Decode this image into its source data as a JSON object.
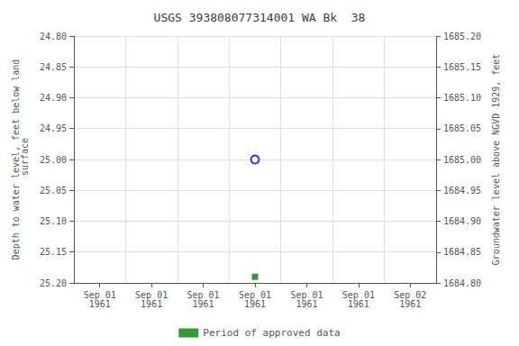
{
  "chart_data": {
    "type": "scatter",
    "title": "USGS 393808077314001 WA Bk  38",
    "y_label": "Depth to water level, feet below land\n surface",
    "y2_label": "Groundwater level above NGVD 1929, feet",
    "categories": [
      "Sep 01\n1961",
      "Sep 01\n1961",
      "Sep 01\n1961",
      "Sep 01\n1961",
      "Sep 01\n1961",
      "Sep 01\n1961",
      "Sep 02\n1961"
    ],
    "series": [
      {
        "color": "blue",
        "marker": "open_circle",
        "values": [
          null,
          null,
          null,
          25.0,
          null,
          null,
          null
        ]
      },
      {
        "name": "Period of approved data",
        "color": "green",
        "marker": "square",
        "values": [
          null,
          null,
          null,
          25.19,
          null,
          null,
          null
        ]
      }
    ],
    "ylim": [
      25.2,
      24.8
    ],
    "yticks": [
      {
        "value": 24.8,
        "label": "24.80"
      },
      24.85,
      {
        "value": 24.9,
        "label": "24.90"
      },
      24.95,
      {
        "value": 25.0,
        "label": "25.00"
      },
      25.05,
      {
        "value": 25.1,
        "label": "25.10"
      },
      25.15,
      {
        "value": 25.2,
        "label": "25.20"
      }
    ],
    "y2lim": [
      1684.8,
      1685.2
    ],
    "y2ticks": [
      {
        "value": 1685.2,
        "label": "1685.20"
      },
      1685.15,
      {
        "value": 1685.1,
        "label": "1685.10"
      },
      1685.05,
      {
        "value": 1685.0,
        "label": "1685.00"
      },
      1684.95,
      {
        "value": 1684.9,
        "label": "1684.90"
      },
      1684.85,
      {
        "value": 1684.8,
        "label": "1684.80"
      }
    ],
    "grid": true,
    "legend": "bottom"
  }
}
